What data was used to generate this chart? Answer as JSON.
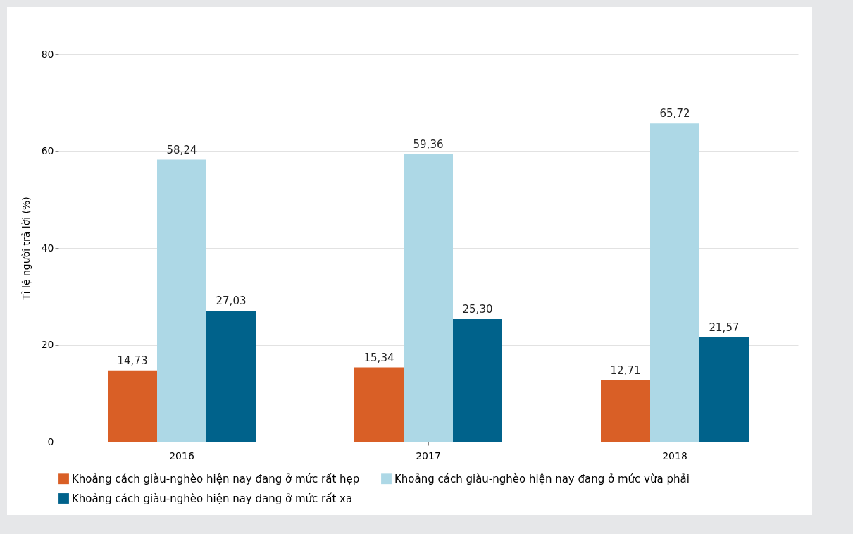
{
  "chart_data": {
    "type": "bar",
    "ylabel": "Tỉ lệ người trả lời (%)",
    "categories": [
      "2016",
      "2017",
      "2018"
    ],
    "series": [
      {
        "name": "Khoảng cách giàu-nghèo hiện nay đang ở mức rất hẹp",
        "color": "#d95f26",
        "values": [
          14.73,
          15.34,
          12.71
        ],
        "value_labels": [
          "14,73",
          "15,34",
          "12,71"
        ]
      },
      {
        "name": "Khoảng cách giàu-nghèo hiện nay đang ở mức vừa phải",
        "color": "#add8e6",
        "values": [
          58.24,
          59.36,
          65.72
        ],
        "value_labels": [
          "58,24",
          "59,36",
          "65,72"
        ]
      },
      {
        "name": "Khoảng cách giàu-nghèo hiện nay đang ở mức rất xa",
        "color": "#00628b",
        "values": [
          27.03,
          25.3,
          21.57
        ],
        "value_labels": [
          "27,03",
          "25,30",
          "21,57"
        ]
      }
    ],
    "ylim": [
      0,
      80
    ],
    "yticks": [
      0,
      20,
      40,
      60,
      80
    ],
    "grid": "y",
    "legend": "bottom"
  }
}
